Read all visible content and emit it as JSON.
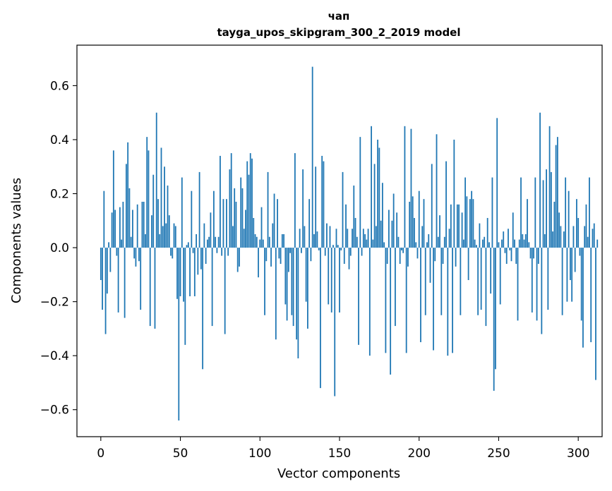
{
  "chart_data": {
    "type": "bar",
    "title_line1": "чап",
    "title_line2": "tayga_upos_skipgram_300_2_2019 model",
    "xlabel": "Vector components",
    "ylabel": "Components values",
    "xlim": [
      -15,
      315
    ],
    "ylim": [
      -0.7,
      0.75
    ],
    "xticks": [
      0,
      50,
      100,
      150,
      200,
      250,
      300
    ],
    "xtick_labels": [
      "0",
      "50",
      "100",
      "150",
      "200",
      "250",
      "300"
    ],
    "yticks": [
      -0.6,
      -0.4,
      -0.2,
      0.0,
      0.2,
      0.4,
      0.6
    ],
    "ytick_labels": [
      "−0.6",
      "−0.4",
      "−0.2",
      "0.0",
      "0.2",
      "0.4",
      "0.6"
    ],
    "bar_color": "#1f77b4",
    "values": [
      -0.12,
      -0.23,
      0.21,
      -0.32,
      -0.17,
      0.02,
      -0.09,
      0.13,
      0.36,
      0.14,
      -0.03,
      -0.24,
      0.15,
      0.03,
      0.17,
      -0.26,
      0.31,
      0.39,
      0.22,
      0.04,
      0.14,
      -0.04,
      -0.07,
      0.16,
      -0.05,
      -0.23,
      0.17,
      0.17,
      0.05,
      0.41,
      0.36,
      -0.29,
      0.12,
      0.27,
      -0.3,
      0.5,
      0.18,
      0.05,
      0.37,
      0.08,
      0.3,
      0.09,
      0.23,
      0.12,
      -0.03,
      -0.04,
      0.09,
      0.08,
      -0.19,
      -0.64,
      -0.18,
      0.26,
      -0.2,
      -0.36,
      0.01,
      0.02,
      -0.18,
      0.21,
      -0.02,
      -0.18,
      0.05,
      -0.1,
      0.28,
      -0.08,
      -0.45,
      0.09,
      -0.06,
      0.03,
      0.04,
      0.13,
      -0.29,
      0.21,
      0.04,
      -0.02,
      0.04,
      0.34,
      -0.03,
      0.18,
      -0.32,
      0.18,
      -0.03,
      0.29,
      0.35,
      0.08,
      0.22,
      0.17,
      -0.09,
      -0.07,
      0.26,
      0.22,
      0.07,
      0.14,
      0.32,
      0.27,
      0.35,
      0.33,
      0.11,
      0.05,
      0.04,
      -0.11,
      0.03,
      0.15,
      0.03,
      -0.25,
      -0.05,
      0.28,
      0.04,
      -0.07,
      0.09,
      0.2,
      -0.34,
      0.18,
      -0.04,
      -0.06,
      0.05,
      0.05,
      -0.21,
      -0.27,
      -0.09,
      -0.02,
      -0.25,
      -0.29,
      0.35,
      -0.34,
      -0.41,
      0.07,
      -0.02,
      0.29,
      0.08,
      -0.2,
      -0.3,
      0.18,
      -0.05,
      0.67,
      0.05,
      0.3,
      0.06,
      -0.01,
      -0.52,
      0.34,
      0.32,
      -0.03,
      0.09,
      -0.21,
      0.08,
      -0.24,
      0.01,
      -0.55,
      0.07,
      0.01,
      -0.24,
      -0.01,
      0.28,
      -0.06,
      0.16,
      0.07,
      -0.08,
      -0.03,
      0.07,
      0.23,
      0.11,
      0.04,
      -0.36,
      0.41,
      -0.03,
      0.07,
      0.05,
      0.03,
      0.07,
      -0.4,
      0.45,
      0.03,
      0.31,
      0.08,
      0.4,
      0.37,
      0.1,
      0.24,
      0.02,
      -0.39,
      -0.06,
      0.14,
      -0.47,
      0.1,
      0.2,
      -0.29,
      0.13,
      0.04,
      -0.06,
      -0.01,
      -0.02,
      0.45,
      -0.39,
      -0.07,
      0.17,
      0.44,
      0.19,
      0.11,
      0.02,
      -0.04,
      0.21,
      -0.35,
      0.08,
      0.18,
      -0.25,
      0.02,
      0.05,
      -0.13,
      0.31,
      -0.38,
      -0.05,
      0.42,
      0.04,
      0.12,
      -0.25,
      -0.06,
      0.04,
      0.32,
      -0.4,
      0.07,
      0.16,
      -0.39,
      0.4,
      -0.07,
      0.16,
      0.16,
      -0.25,
      0.13,
      0.03,
      0.26,
      0.19,
      -0.12,
      0.18,
      0.21,
      0.18,
      0.03,
      0.01,
      -0.25,
      0.09,
      -0.23,
      0.03,
      0.04,
      -0.29,
      0.11,
      0.02,
      -0.17,
      0.26,
      -0.53,
      -0.45,
      0.48,
      0.02,
      -0.21,
      0.03,
      0.06,
      -0.02,
      -0.06,
      0.07,
      -0.01,
      -0.05,
      0.13,
      0.03,
      -0.06,
      -0.27,
      0.03,
      0.26,
      0.05,
      0.03,
      0.05,
      0.18,
      0.02,
      -0.04,
      -0.24,
      -0.04,
      0.26,
      -0.27,
      -0.06,
      0.5,
      -0.32,
      0.25,
      0.05,
      0.29,
      -0.23,
      0.45,
      0.28,
      0.06,
      0.17,
      0.38,
      0.41,
      0.13,
      0.08,
      -0.25,
      0.06,
      0.26,
      -0.2,
      0.21,
      -0.12,
      -0.2,
      0.08,
      -0.09,
      0.18,
      0.11,
      -0.03,
      -0.27,
      -0.37,
      0.08,
      0.16,
      0.04,
      0.26,
      -0.35,
      0.07,
      0.09,
      -0.49,
      0.03
    ]
  }
}
